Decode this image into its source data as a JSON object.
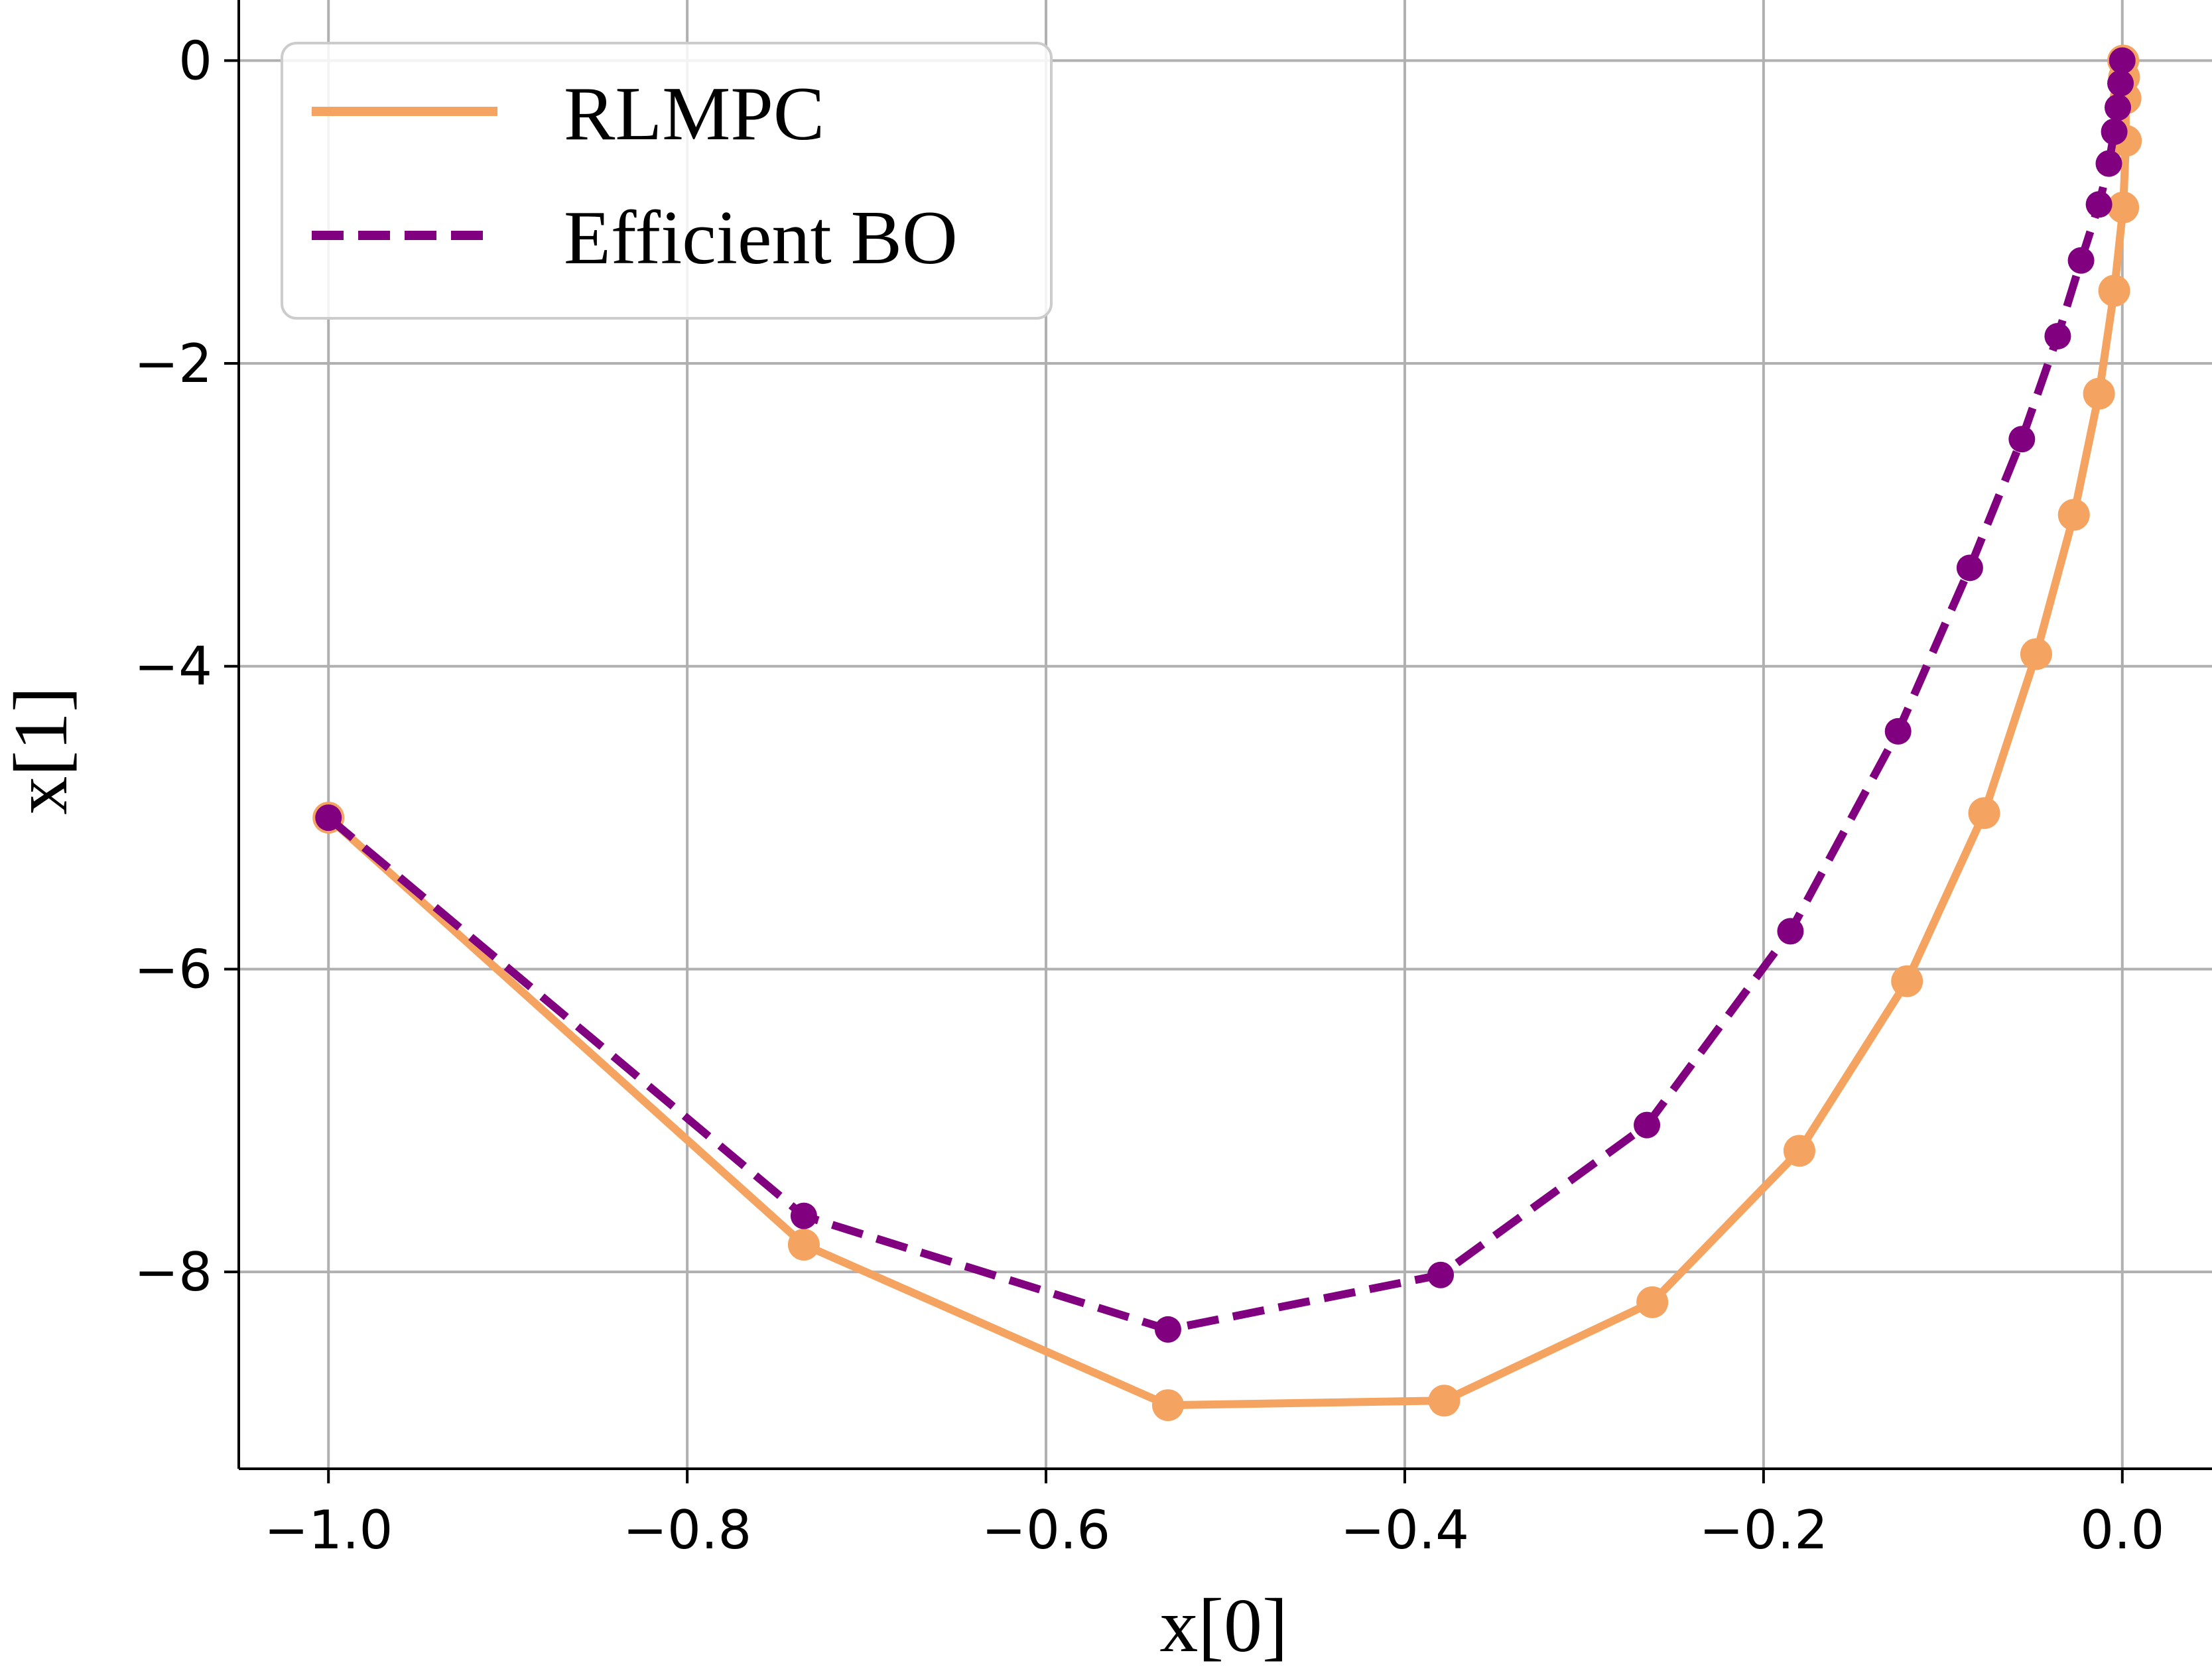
{
  "chart_data": {
    "type": "line",
    "xlabel": "x[0]",
    "ylabel": "x[1]",
    "xlim": [
      -1.05,
      0.05
    ],
    "ylim": [
      -9.3,
      0.4
    ],
    "xticks": [
      -1.0,
      -0.8,
      -0.6,
      -0.4,
      -0.2,
      0.0
    ],
    "yticks": [
      0,
      -2,
      -4,
      -6,
      -8
    ],
    "xtick_labels": [
      "−1.0",
      "−0.8",
      "−0.6",
      "−0.4",
      "−0.2",
      "0.0"
    ],
    "ytick_labels": [
      "0",
      "−2",
      "−4",
      "−6",
      "−8"
    ],
    "grid": true,
    "legend_position": "top-left",
    "series": [
      {
        "name": "RLMPC",
        "color": "#f4a460",
        "line_style": "solid",
        "x": [
          -1.0,
          -0.735,
          -0.532,
          -0.378,
          -0.262,
          -0.18,
          -0.12,
          -0.077,
          -0.048,
          -0.027,
          -0.013,
          -0.0045,
          0.0005,
          0.002,
          0.0018,
          0.001,
          0.0005
        ],
        "y": [
          -5.0,
          -7.82,
          -8.88,
          -8.85,
          -8.2,
          -7.2,
          -6.08,
          -4.97,
          -3.92,
          -3.0,
          -2.2,
          -1.52,
          -0.97,
          -0.53,
          -0.25,
          -0.11,
          0.0
        ]
      },
      {
        "name": "Efficient BO",
        "color": "#800080",
        "line_style": "dashed",
        "x": [
          -1.0,
          -0.735,
          -0.532,
          -0.38,
          -0.265,
          -0.185,
          -0.125,
          -0.085,
          -0.056,
          -0.036,
          -0.023,
          -0.013,
          -0.0075,
          -0.0045,
          -0.0025,
          -0.001,
          0.0
        ],
        "y": [
          -5.0,
          -7.63,
          -8.38,
          -8.02,
          -7.03,
          -5.75,
          -4.43,
          -3.35,
          -2.5,
          -1.82,
          -1.32,
          -0.95,
          -0.68,
          -0.47,
          -0.31,
          -0.15,
          0.0
        ]
      }
    ]
  }
}
